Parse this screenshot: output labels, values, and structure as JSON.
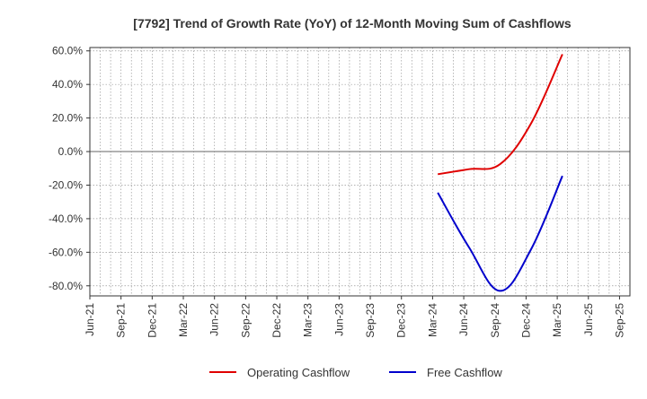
{
  "chart_data": {
    "type": "line",
    "title": "[7792]  Trend of Growth Rate (YoY) of 12-Month Moving Sum of Cashflows",
    "xlabel": "",
    "ylabel": "",
    "x_ticks": [
      "Jun-21",
      "Sep-21",
      "Dec-21",
      "Mar-22",
      "Jun-22",
      "Sep-22",
      "Dec-22",
      "Mar-23",
      "Jun-23",
      "Sep-23",
      "Dec-23",
      "Mar-24",
      "Jun-24",
      "Sep-24",
      "Dec-24",
      "Mar-25",
      "Jun-25",
      "Sep-25"
    ],
    "x_months": [
      "2021-06",
      "2021-07",
      "2021-08",
      "2021-09",
      "2021-10",
      "2021-11",
      "2021-12",
      "2022-01",
      "2022-02",
      "2022-03",
      "2022-04",
      "2022-05",
      "2022-06",
      "2022-07",
      "2022-08",
      "2022-09",
      "2022-10",
      "2022-11",
      "2022-12",
      "2023-01",
      "2023-02",
      "2023-03",
      "2023-04",
      "2023-05",
      "2023-06",
      "2023-07",
      "2023-08",
      "2023-09",
      "2023-10",
      "2023-11",
      "2023-12",
      "2024-01",
      "2024-02",
      "2024-03",
      "2024-04",
      "2024-05",
      "2024-06",
      "2024-07",
      "2024-08",
      "2024-09",
      "2024-10",
      "2024-11",
      "2024-12",
      "2025-01",
      "2025-02",
      "2025-03",
      "2025-04",
      "2025-05",
      "2025-06",
      "2025-07",
      "2025-08",
      "2025-09"
    ],
    "y_ticks": [
      "60.0%",
      "40.0%",
      "20.0%",
      "0.0%",
      "-20.0%",
      "-40.0%",
      "-60.0%",
      "-80.0%"
    ],
    "y_tick_values": [
      60,
      40,
      20,
      0,
      -20,
      -40,
      -60,
      -80
    ],
    "ylim": [
      -86,
      62
    ],
    "grid": true,
    "legend_position": "bottom",
    "series": [
      {
        "name": "Operating Cashflow",
        "color": "#e00000",
        "x": [
          "2024-03",
          "2024-06",
          "2024-09",
          "2024-12",
          "2025-03"
        ],
        "values": [
          -13.5,
          -10.5,
          -7.5,
          17.0,
          58.0
        ]
      },
      {
        "name": "Free Cashflow",
        "color": "#0000cc",
        "x": [
          "2024-03",
          "2024-06",
          "2024-09",
          "2024-12",
          "2025-03"
        ],
        "values": [
          -24.5,
          -57.0,
          -83.0,
          -58.0,
          -14.5
        ]
      }
    ]
  }
}
